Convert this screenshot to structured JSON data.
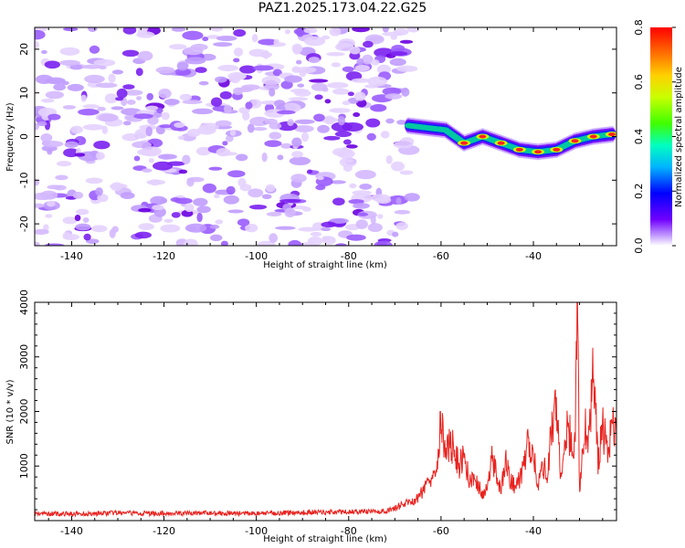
{
  "title": "PAZ1.2025.173.04.22.G25",
  "colors": {
    "snr_line": "#e8231f",
    "plume_low": "#8a2be2",
    "plume_mid": "#00c8a0",
    "plume_high": "#ff2020"
  },
  "chart_data": [
    {
      "type": "heatmap",
      "xlabel": "Height of straight line (km)",
      "ylabel": "Frequency (Hz)",
      "xlim": [
        -148,
        -22
      ],
      "ylim": [
        -25,
        25
      ],
      "x_ticks": [
        -140,
        -120,
        -100,
        -80,
        -60,
        -40
      ],
      "y_ticks": [
        -20,
        -10,
        0,
        10,
        20
      ],
      "y_tick_labels": [
        "-20",
        "-10",
        "0",
        "10",
        "20"
      ],
      "colorbar": {
        "label": "Normalized spectral amplitude",
        "range": [
          0,
          0.8
        ],
        "ticks": [
          "0.0",
          "0.2",
          "0.4",
          "0.6",
          "0.8"
        ],
        "colormap": "rainbow (purple to red)"
      },
      "dominant_signal": {
        "x": [
          -67,
          -63,
          -59,
          -55,
          -51,
          -47,
          -43,
          -39,
          -35,
          -31,
          -27,
          -23
        ],
        "frequency": [
          2.5,
          2,
          1.5,
          -1.5,
          0,
          -1.5,
          -3,
          -3.5,
          -3,
          -1,
          0,
          0.5
        ],
        "amplitude": [
          0.35,
          0.4,
          0.45,
          0.55,
          0.7,
          0.65,
          0.75,
          0.7,
          0.7,
          0.65,
          0.8,
          0.75
        ]
      },
      "noise_region_x": [
        -148,
        -66
      ]
    },
    {
      "type": "line",
      "xlabel": "Height of straight line (km)",
      "ylabel": "SNR (10 * v/v)",
      "xlim": [
        -148,
        -22
      ],
      "ylim": [
        0,
        4000
      ],
      "x_ticks": [
        -140,
        -120,
        -100,
        -80,
        -60,
        -40
      ],
      "y_ticks": [
        1000,
        2000,
        3000,
        4000
      ],
      "series": [
        {
          "x": [
            -148,
            -140,
            -130,
            -120,
            -110,
            -100,
            -90,
            -80,
            -72,
            -68,
            -65,
            -63,
            -61,
            -60,
            -59,
            -58,
            -57,
            -56,
            -55,
            -54,
            -53,
            -52,
            -51,
            -50,
            -49,
            -48,
            -47,
            -46,
            -45,
            -44,
            -43,
            -42,
            -41,
            -40,
            -39,
            -38,
            -37,
            -36,
            -35,
            -34,
            -33,
            -32,
            -31,
            -30.5,
            -30,
            -29,
            -28,
            -27,
            -26,
            -25,
            -24,
            -23,
            -22
          ],
          "y": [
            130,
            120,
            140,
            130,
            140,
            130,
            150,
            160,
            170,
            300,
            400,
            700,
            1000,
            1900,
            1100,
            1500,
            1200,
            1000,
            1200,
            800,
            700,
            650,
            500,
            550,
            1150,
            900,
            500,
            1200,
            700,
            650,
            750,
            1050,
            1450,
            1300,
            600,
            1050,
            850,
            1750,
            2200,
            700,
            1650,
            1550,
            1300,
            4000,
            600,
            1700,
            1500,
            2750,
            1050,
            1700,
            1300,
            1700,
            1800
          ]
        }
      ]
    }
  ]
}
